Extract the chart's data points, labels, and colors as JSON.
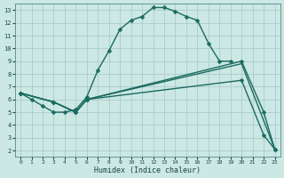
{
  "title": "",
  "xlabel": "Humidex (Indice chaleur)",
  "background_color": "#cce8e4",
  "grid_color": "#aacccc",
  "line_color": "#1a6b60",
  "xlim": [
    -0.5,
    23.5
  ],
  "ylim": [
    1.5,
    13.5
  ],
  "xticks": [
    0,
    1,
    2,
    3,
    4,
    5,
    6,
    7,
    8,
    9,
    10,
    11,
    12,
    13,
    14,
    15,
    16,
    17,
    18,
    19,
    20,
    21,
    22,
    23
  ],
  "yticks": [
    2,
    3,
    4,
    5,
    6,
    7,
    8,
    9,
    10,
    11,
    12,
    13
  ],
  "s1_x": [
    0,
    1,
    2,
    3,
    4,
    5,
    6,
    7,
    8,
    9,
    10,
    11,
    12,
    13,
    14,
    15,
    16,
    17,
    18,
    19
  ],
  "s1_y": [
    6.5,
    6.0,
    5.5,
    5.0,
    5.0,
    5.2,
    6.2,
    8.3,
    9.8,
    11.5,
    12.2,
    12.5,
    13.2,
    13.2,
    12.9,
    12.5,
    12.2,
    10.4,
    9.0,
    9.0
  ],
  "s2_x": [
    0,
    3,
    5,
    6,
    20,
    22,
    23
  ],
  "s2_y": [
    6.5,
    5.8,
    5.0,
    6.0,
    7.5,
    3.2,
    2.1
  ],
  "s3_x": [
    0,
    3,
    5,
    6,
    20,
    22,
    23
  ],
  "s3_y": [
    6.5,
    5.8,
    5.0,
    6.0,
    9.0,
    5.0,
    2.1
  ],
  "s4_x": [
    0,
    3,
    5,
    6,
    20,
    23
  ],
  "s4_y": [
    6.5,
    5.8,
    5.0,
    6.0,
    8.8,
    2.1
  ]
}
